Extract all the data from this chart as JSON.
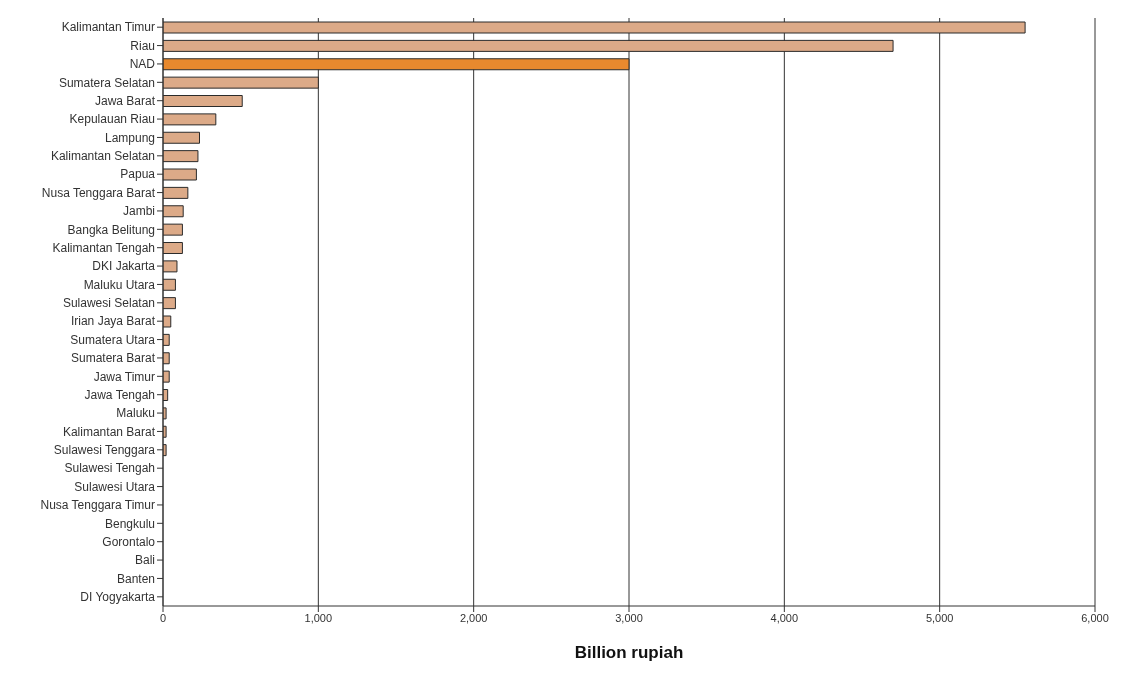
{
  "chart_data": {
    "type": "bar",
    "orientation": "horizontal",
    "xlabel": "Billion rupiah",
    "categories": [
      "Kalimantan Timur",
      "Riau",
      "NAD",
      "Sumatera Selatan",
      "Jawa Barat",
      "Kepulauan Riau",
      "Lampung",
      "Kalimantan Selatan",
      "Papua",
      "Nusa Tenggara Barat",
      "Jambi",
      "Bangka Belitung",
      "Kalimantan Tengah",
      "DKI Jakarta",
      "Maluku Utara",
      "Sulawesi Selatan",
      "Irian Jaya Barat",
      "Sumatera Utara",
      "Sumatera Barat",
      "Jawa Timur",
      "Jawa Tengah",
      "Maluku",
      "Kalimantan Barat",
      "Sulawesi Tenggara",
      "Sulawesi Tengah",
      "Sulawesi Utara",
      "Nusa Tenggara Timur",
      "Bengkulu",
      "Gorontalo",
      "Bali",
      "Banten",
      "DI Yogyakarta"
    ],
    "values": [
      5550,
      4700,
      3000,
      1000,
      510,
      340,
      235,
      225,
      215,
      160,
      130,
      125,
      125,
      90,
      80,
      80,
      50,
      40,
      40,
      40,
      30,
      20,
      20,
      20,
      0,
      0,
      0,
      0,
      0,
      0,
      0,
      0
    ],
    "colors": [
      "#dcaa88",
      "#dcaa88",
      "#e8892e",
      "#dcaa88",
      "#dcaa88",
      "#dcaa88",
      "#dcaa88",
      "#dcaa88",
      "#dcaa88",
      "#dcaa88",
      "#dcaa88",
      "#dcaa88",
      "#dcaa88",
      "#dcaa88",
      "#dcaa88",
      "#dcaa88",
      "#dcaa88",
      "#dcaa88",
      "#dcaa88",
      "#dcaa88",
      "#dcaa88",
      "#dcaa88",
      "#dcaa88",
      "#dcaa88",
      "#dcaa88",
      "#dcaa88",
      "#dcaa88",
      "#dcaa88",
      "#dcaa88",
      "#dcaa88",
      "#dcaa88",
      "#dcaa88"
    ],
    "xlim": [
      0,
      6000
    ],
    "xticks": [
      {
        "value": 0,
        "label": "0"
      },
      {
        "value": 1000,
        "label": "1,000"
      },
      {
        "value": 2000,
        "label": "2,000"
      },
      {
        "value": 3000,
        "label": "3,000"
      },
      {
        "value": 4000,
        "label": "4,000"
      },
      {
        "value": 5000,
        "label": "5,000"
      },
      {
        "value": 6000,
        "label": "6,000"
      }
    ],
    "grid": "x",
    "legend": false
  }
}
